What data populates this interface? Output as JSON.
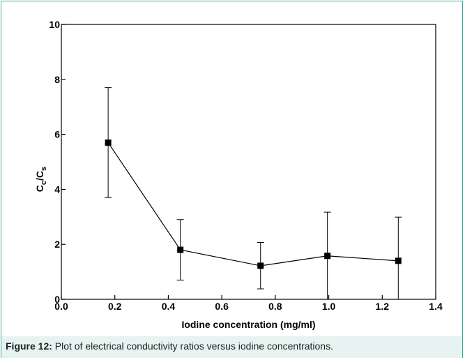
{
  "chart_data": {
    "type": "line",
    "title": "",
    "xlabel": "Iodine concentration (mg/ml)",
    "ylabel": {
      "main": "C",
      "sub1": "c",
      "slash": "/C",
      "sub2": "s"
    },
    "xlim": [
      0.0,
      1.4
    ],
    "ylim": [
      0,
      10
    ],
    "xticks": [
      "0.0",
      "0.2",
      "0.4",
      "0.6",
      "0.8",
      "1.0",
      "1.2",
      "1.4"
    ],
    "yticks": [
      "0",
      "2",
      "4",
      "6",
      "8",
      "10"
    ],
    "xtick_values": [
      0.0,
      0.2,
      0.4,
      0.6,
      0.8,
      1.0,
      1.2,
      1.4
    ],
    "ytick_values": [
      0,
      2,
      4,
      6,
      8,
      10
    ],
    "grid": false,
    "series": [
      {
        "x": [
          0.175,
          0.445,
          0.745,
          0.995,
          1.26
        ],
        "y": [
          5.7,
          1.8,
          1.22,
          1.58,
          1.4
        ],
        "error_low": [
          3.7,
          0.7,
          0.38,
          0.0,
          0.0
        ],
        "error_high": [
          7.7,
          2.9,
          2.07,
          3.17,
          2.99
        ],
        "marker": "square",
        "color": "#000000"
      }
    ]
  },
  "caption": {
    "label": "Figure 12:",
    "text": " Plot of electrical conductivity ratios versus iodine concentrations."
  }
}
